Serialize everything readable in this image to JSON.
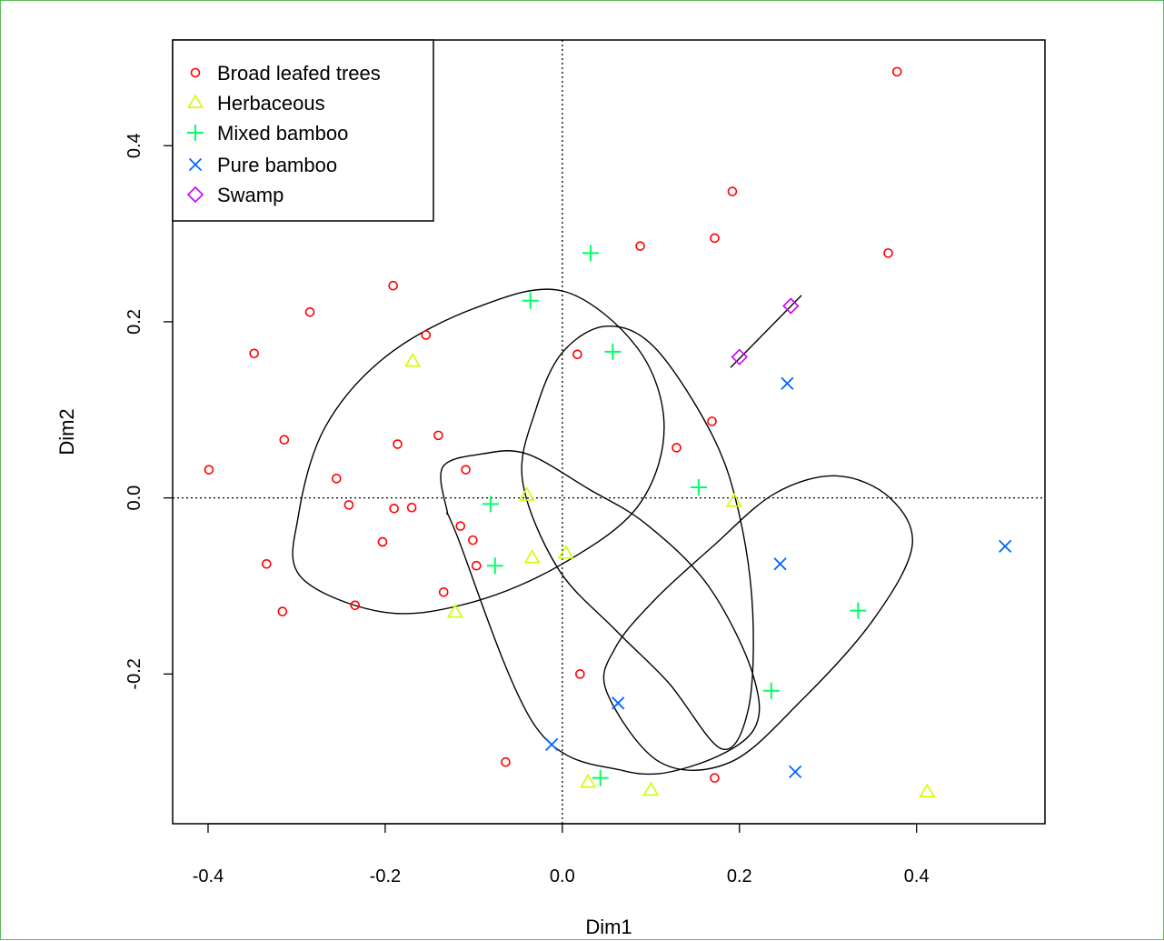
{
  "chart_data": {
    "type": "scatter",
    "title": "",
    "xlabel": "Dim1",
    "ylabel": "Dim2",
    "xlim": [
      -0.44,
      0.545
    ],
    "ylim": [
      -0.37,
      0.52
    ],
    "x_ticks": [
      "-0.4",
      "-0.2",
      "0.0",
      "0.2",
      "0.4"
    ],
    "x_tick_values": [
      -0.4,
      -0.2,
      0.0,
      0.2,
      0.4
    ],
    "y_ticks": [
      "-0.2",
      "0.0",
      "0.2",
      "0.4"
    ],
    "y_tick_values": [
      -0.2,
      0.0,
      0.2,
      0.4
    ],
    "grid": false,
    "reference_lines": {
      "x": 0.0,
      "y": 0.0,
      "style": "dotted"
    },
    "legend": {
      "position": "top-left",
      "entries": [
        {
          "label": "Broad leafed trees",
          "marker": "circle",
          "color": "#ff0000"
        },
        {
          "label": "Herbaceous",
          "marker": "triangle",
          "color": "#ccff00"
        },
        {
          "label": "Mixed bamboo",
          "marker": "plus",
          "color": "#00ff66"
        },
        {
          "label": "Pure bamboo",
          "marker": "cross",
          "color": "#0066ff"
        },
        {
          "label": "Swamp",
          "marker": "diamond",
          "color": "#cc00ff"
        }
      ]
    },
    "series": [
      {
        "name": "Broad leafed trees",
        "marker": "circle",
        "color": "#ff0000",
        "points": [
          [
            0.378,
            0.484
          ],
          [
            0.192,
            0.348
          ],
          [
            0.172,
            0.295
          ],
          [
            0.088,
            0.286
          ],
          [
            0.368,
            0.278
          ],
          [
            -0.191,
            0.241
          ],
          [
            -0.285,
            0.211
          ],
          [
            -0.154,
            0.185
          ],
          [
            -0.348,
            0.164
          ],
          [
            0.017,
            0.163
          ],
          [
            0.169,
            0.087
          ],
          [
            -0.14,
            0.071
          ],
          [
            -0.314,
            0.066
          ],
          [
            -0.186,
            0.061
          ],
          [
            0.129,
            0.057
          ],
          [
            -0.399,
            0.032
          ],
          [
            -0.109,
            0.032
          ],
          [
            -0.255,
            0.022
          ],
          [
            -0.241,
            -0.008
          ],
          [
            -0.19,
            -0.012
          ],
          [
            -0.17,
            -0.011
          ],
          [
            -0.115,
            -0.032
          ],
          [
            -0.101,
            -0.048
          ],
          [
            -0.203,
            -0.05
          ],
          [
            -0.097,
            -0.077
          ],
          [
            -0.334,
            -0.075
          ],
          [
            -0.134,
            -0.107
          ],
          [
            -0.234,
            -0.122
          ],
          [
            -0.316,
            -0.129
          ],
          [
            0.02,
            -0.2
          ],
          [
            -0.064,
            -0.3
          ],
          [
            0.172,
            -0.318
          ]
        ]
      },
      {
        "name": "Herbaceous",
        "marker": "triangle",
        "color": "#ccff00",
        "points": [
          [
            -0.169,
            0.155
          ],
          [
            -0.04,
            0.003
          ],
          [
            0.194,
            -0.004
          ],
          [
            -0.034,
            -0.068
          ],
          [
            0.004,
            -0.063
          ],
          [
            -0.121,
            -0.13
          ],
          [
            0.029,
            -0.323
          ],
          [
            0.1,
            -0.332
          ],
          [
            0.412,
            -0.334
          ]
        ]
      },
      {
        "name": "Mixed bamboo",
        "marker": "plus",
        "color": "#00ff66",
        "points": [
          [
            0.032,
            0.278
          ],
          [
            -0.036,
            0.224
          ],
          [
            0.057,
            0.166
          ],
          [
            0.154,
            0.012
          ],
          [
            -0.081,
            -0.007
          ],
          [
            -0.076,
            -0.077
          ],
          [
            0.334,
            -0.128
          ],
          [
            0.236,
            -0.219
          ],
          [
            0.043,
            -0.318
          ]
        ]
      },
      {
        "name": "Pure bamboo",
        "marker": "cross",
        "color": "#0066ff",
        "points": [
          [
            0.254,
            0.13
          ],
          [
            0.5,
            -0.055
          ],
          [
            0.246,
            -0.075
          ],
          [
            0.063,
            -0.233
          ],
          [
            -0.012,
            -0.28
          ],
          [
            0.263,
            -0.311
          ]
        ]
      },
      {
        "name": "Swamp",
        "marker": "diamond",
        "color": "#cc00ff",
        "points": [
          [
            0.258,
            0.218
          ],
          [
            0.2,
            0.16
          ]
        ]
      }
    ],
    "confidence_ellipses": [
      {
        "group": "Broad leafed trees",
        "path": [
          [
            -0.295,
            -0.09
          ],
          [
            -0.2,
            -0.13
          ],
          [
            -0.1,
            -0.118
          ],
          [
            0.0,
            -0.075
          ],
          [
            0.085,
            -0.01
          ],
          [
            0.115,
            0.08
          ],
          [
            0.085,
            0.17
          ],
          [
            0.0,
            0.235
          ],
          [
            -0.1,
            0.215
          ],
          [
            -0.2,
            0.16
          ],
          [
            -0.268,
            0.08
          ],
          [
            -0.298,
            -0.02
          ],
          [
            -0.295,
            -0.09
          ]
        ]
      },
      {
        "group": "Herbaceous",
        "path": [
          [
            -0.12,
            -0.04
          ],
          [
            -0.03,
            -0.26
          ],
          [
            0.07,
            -0.31
          ],
          [
            0.145,
            -0.305
          ],
          [
            0.215,
            -0.265
          ],
          [
            0.215,
            -0.2
          ],
          [
            0.165,
            -0.1
          ],
          [
            0.095,
            -0.03
          ],
          [
            0.03,
            0.01
          ],
          [
            -0.04,
            0.05
          ],
          [
            -0.09,
            0.05
          ],
          [
            -0.135,
            0.035
          ],
          [
            -0.13,
            -0.015
          ],
          [
            -0.12,
            -0.04
          ]
        ]
      },
      {
        "group": "Mixed bamboo",
        "path": [
          [
            -0.045,
            0.02
          ],
          [
            -0.03,
            0.1
          ],
          [
            0.0,
            0.165
          ],
          [
            0.05,
            0.195
          ],
          [
            0.105,
            0.17
          ],
          [
            0.17,
            0.07
          ],
          [
            0.2,
            -0.02
          ],
          [
            0.215,
            -0.13
          ],
          [
            0.21,
            -0.24
          ],
          [
            0.18,
            -0.285
          ],
          [
            0.12,
            -0.21
          ],
          [
            0.06,
            -0.15
          ],
          [
            -0.005,
            -0.08
          ],
          [
            -0.045,
            0.02
          ]
        ]
      },
      {
        "group": "Pure bamboo",
        "path": [
          [
            0.05,
            -0.22
          ],
          [
            0.11,
            -0.3
          ],
          [
            0.19,
            -0.3
          ],
          [
            0.27,
            -0.23
          ],
          [
            0.35,
            -0.14
          ],
          [
            0.395,
            -0.055
          ],
          [
            0.37,
            0.0
          ],
          [
            0.31,
            0.025
          ],
          [
            0.24,
            0.005
          ],
          [
            0.17,
            -0.055
          ],
          [
            0.105,
            -0.115
          ],
          [
            0.06,
            -0.17
          ],
          [
            0.05,
            -0.22
          ]
        ]
      },
      {
        "group": "Swamp",
        "path": [
          [
            0.19,
            0.148
          ],
          [
            0.27,
            0.23
          ]
        ]
      }
    ]
  }
}
